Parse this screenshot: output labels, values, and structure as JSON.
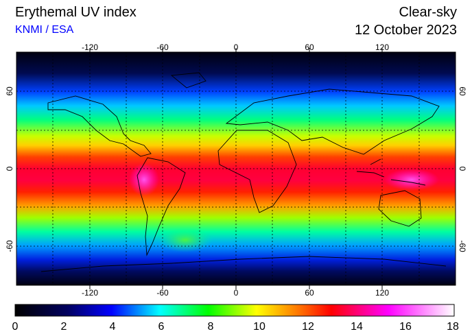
{
  "header": {
    "title": "Erythemal UV index",
    "credit": "KNMI / ESA",
    "mode": "Clear-sky",
    "date": "12 October 2023"
  },
  "map": {
    "lon_labels": [
      "-120",
      "-60",
      "0",
      "60",
      "120"
    ],
    "lon_values": [
      -120,
      -60,
      0,
      60,
      120
    ],
    "lat_labels": [
      "60",
      "0",
      "-60"
    ],
    "lat_values": [
      60,
      0,
      -60
    ],
    "lon_range": [
      -180,
      180
    ],
    "lat_range": [
      -90,
      90
    ],
    "grid": "dotted every 30 degrees",
    "background_land_lines": "coastlines"
  },
  "colorbar": {
    "tick_labels": [
      "0",
      "2",
      "4",
      "6",
      "8",
      "10",
      "12",
      "14",
      "16",
      "18"
    ],
    "range": [
      0,
      18
    ],
    "colors": [
      "#000000",
      "#0000ff",
      "#00ffff",
      "#00ff00",
      "#ffff00",
      "#ff0000",
      "#ff00ff",
      "#ffffff"
    ]
  }
}
